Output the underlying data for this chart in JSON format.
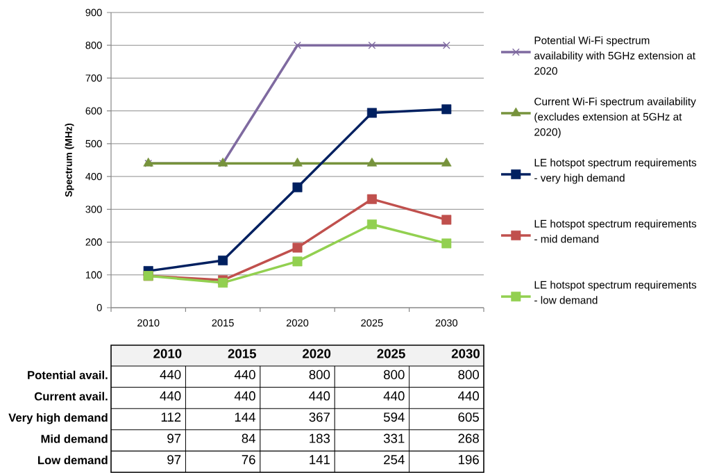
{
  "chart_data": {
    "type": "line",
    "ylabel": "Spectrum (MHz)",
    "categories": [
      "2010",
      "2015",
      "2020",
      "2025",
      "2030"
    ],
    "ylim": [
      0,
      900
    ],
    "yticks": [
      0,
      100,
      200,
      300,
      400,
      500,
      600,
      700,
      800,
      900
    ],
    "grid": "y",
    "legend": "right",
    "annotations": [
      "Potential avail.",
      "Current avail.",
      "Very high demand",
      "Mid demand",
      "Low demand"
    ],
    "series": [
      {
        "name": "Potential Wi-Fi spectrum availability with 5GHz extension at 2020",
        "color": "#7f6aa0",
        "marker": "cross",
        "values": [
          440,
          440,
          800,
          800,
          800
        ],
        "value_labels": [
          "440",
          "440",
          "800",
          "800",
          "800"
        ]
      },
      {
        "name": "Current Wi-Fi spectrum availability (excludes extension at 5GHz at 2020)",
        "color": "#77933c",
        "marker": "triangle",
        "values": [
          440,
          440,
          440,
          440,
          440
        ],
        "value_labels": [
          "440",
          "440",
          "440",
          "440",
          "440"
        ]
      },
      {
        "name": "LE hotspot spectrum requirements - very high demand",
        "color": "#002060",
        "marker": "square",
        "values": [
          112,
          144,
          367,
          594,
          605
        ],
        "value_labels": [
          "112",
          "144",
          "367",
          "594",
          "605"
        ]
      },
      {
        "name": "LE hotspot spectrum requirements - mid demand",
        "color": "#c0504d",
        "marker": "square",
        "values": [
          97,
          84,
          183,
          331,
          268
        ],
        "value_labels": [
          "97",
          "84",
          "183",
          "331",
          "268"
        ]
      },
      {
        "name": "LE hotspot spectrum requirements - low demand",
        "color": "#92d050",
        "marker": "square",
        "values": [
          97,
          76,
          141,
          254,
          196
        ],
        "value_labels": [
          "97",
          "76",
          "141",
          "254",
          "196"
        ]
      }
    ]
  }
}
